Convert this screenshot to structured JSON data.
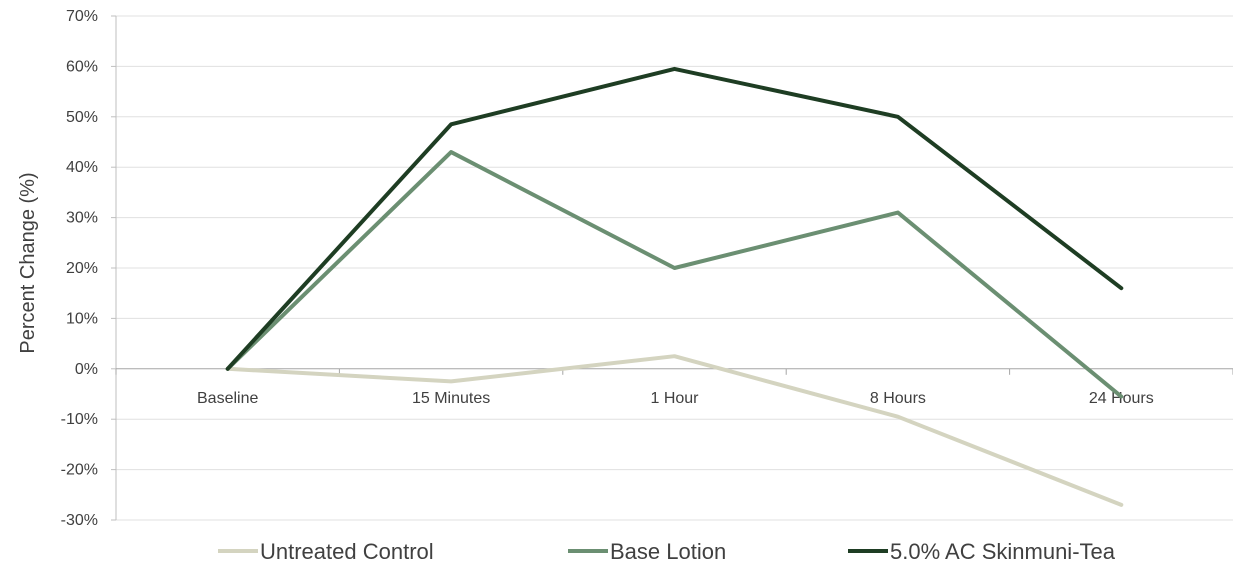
{
  "chart_data": {
    "type": "line",
    "title": "",
    "xlabel": "",
    "ylabel": "Percent Change (%)",
    "ylim": [
      -30,
      70
    ],
    "ytick_step": 10,
    "ytick_suffix": "%",
    "grid": true,
    "legend": "bottom",
    "categories": [
      "Baseline",
      "15 Minutes",
      "1 Hour",
      "8 Hours",
      "24 Hours"
    ],
    "series": [
      {
        "name": "Untreated Control",
        "color": "#d4d4c0",
        "values": [
          0,
          -2.5,
          2.5,
          -9.5,
          -27
        ]
      },
      {
        "name": "Base Lotion",
        "color": "#6b8f72",
        "values": [
          0,
          43,
          20,
          31,
          -5.5
        ]
      },
      {
        "name": "5.0% AC Skinmuni-Tea",
        "color": "#1e3d23",
        "values": [
          0,
          48.5,
          59.5,
          50,
          16
        ]
      }
    ]
  }
}
